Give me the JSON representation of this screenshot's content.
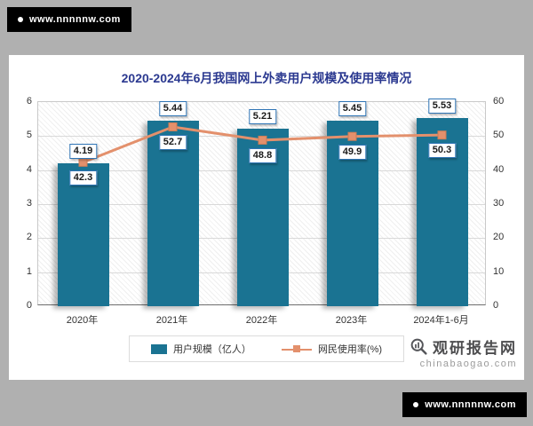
{
  "badges": {
    "top_left": "www.nnnnnw.com",
    "bottom_right": "www.nnnnnw.com"
  },
  "watermark": {
    "brand": "观研报告网",
    "domain": "chinabaogao.com"
  },
  "chart_data": {
    "type": "bar",
    "title": "2020-2024年6月我国网上外卖用户规模及使用率情况",
    "categories": [
      "2020年",
      "2021年",
      "2022年",
      "2023年",
      "2024年1-6月"
    ],
    "series": [
      {
        "name": "用户规模（亿人）",
        "type": "bar",
        "axis": "left",
        "values": [
          4.19,
          5.44,
          5.21,
          5.45,
          5.53
        ],
        "color": "#1a7392"
      },
      {
        "name": "网民使用率(%)",
        "type": "line",
        "axis": "right",
        "values": [
          42.3,
          52.7,
          48.8,
          49.9,
          50.3
        ],
        "color": "#e3906c"
      }
    ],
    "left_axis": {
      "min": 0,
      "max": 6,
      "ticks": [
        0,
        1,
        2,
        3,
        4,
        5,
        6
      ]
    },
    "right_axis": {
      "min": 0,
      "max": 60,
      "ticks": [
        0,
        10,
        20,
        30,
        40,
        50,
        60
      ]
    },
    "grid": true,
    "legend_position": "bottom"
  }
}
